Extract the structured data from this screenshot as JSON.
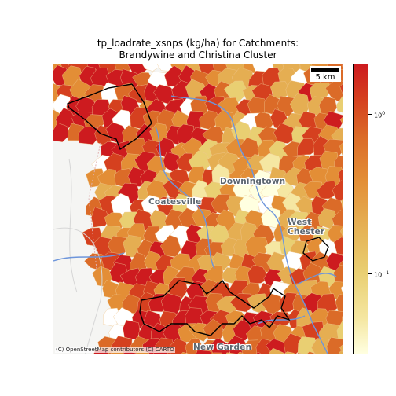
{
  "title_line1": "tp_loadrate_xsnps (kg/ha) for Catchments:",
  "title_line2": "Brandywine and Christina Cluster",
  "places": [
    "Downingtown",
    "Coatesville",
    "West Chester",
    "New Garden"
  ],
  "attribution": "(C) OpenStreetMap contributors (C) CARTO",
  "scalebar_label": "5 km",
  "colorbar": {
    "scale": "log",
    "ticks": [
      {
        "base": "10",
        "exp": "0"
      },
      {
        "base": "10",
        "exp": "−1"
      }
    ],
    "colors": [
      "#ffffe0",
      "#f5e7a2",
      "#e9cf72",
      "#e5ae52",
      "#e38e36",
      "#db6b28",
      "#d5401f",
      "#cd1b1f"
    ]
  }
}
